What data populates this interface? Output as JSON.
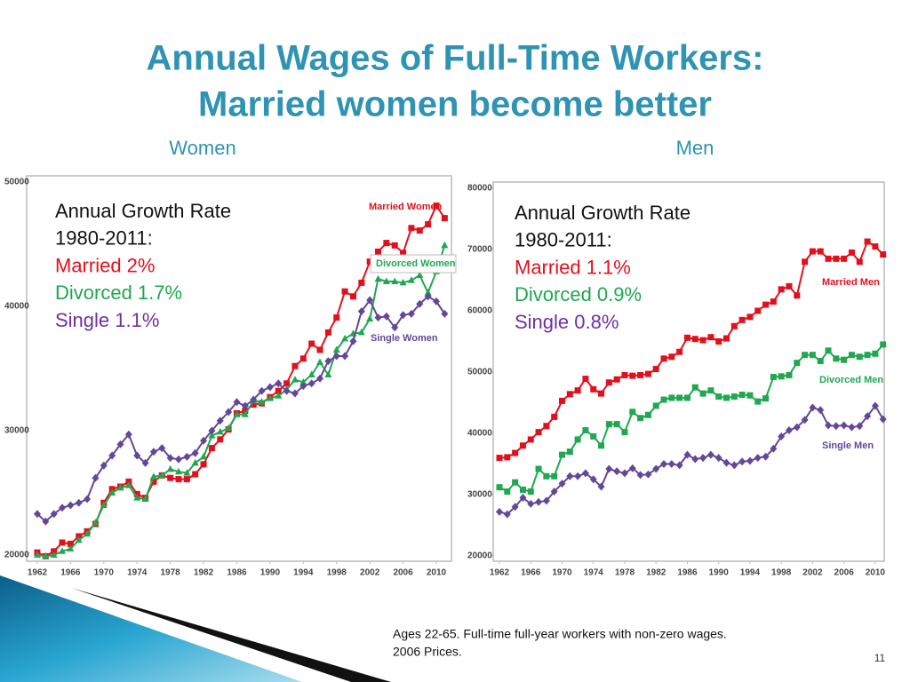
{
  "title": [
    "Annual Wages of Full-Time Workers:",
    "Married women become better"
  ],
  "chart_data": [
    {
      "type": "line",
      "title": "Women",
      "x": [
        1962,
        1963,
        1964,
        1965,
        1966,
        1967,
        1968,
        1969,
        1970,
        1971,
        1972,
        1973,
        1974,
        1975,
        1976,
        1977,
        1978,
        1979,
        1980,
        1981,
        1982,
        1983,
        1984,
        1985,
        1986,
        1987,
        1988,
        1989,
        1990,
        1991,
        1992,
        1993,
        1994,
        1995,
        1996,
        1997,
        1998,
        1999,
        2000,
        2001,
        2002,
        2003,
        2004,
        2005,
        2006,
        2007,
        2008,
        2009,
        2010,
        2011
      ],
      "xlim": [
        1961,
        2012
      ],
      "xticks": [
        1962,
        1966,
        1970,
        1974,
        1978,
        1982,
        1986,
        1990,
        1994,
        1998,
        2002,
        2006,
        2010
      ],
      "ylim": [
        20000,
        50000
      ],
      "yticks": [
        20000,
        30000,
        40000,
        50000
      ],
      "series": [
        {
          "name": "Married Women",
          "color": "#e3101c",
          "marker": "square",
          "values": [
            20200,
            19900,
            20300,
            21000,
            20900,
            21500,
            21900,
            22500,
            24200,
            25300,
            25500,
            25900,
            24900,
            24600,
            25900,
            26400,
            26200,
            26100,
            26100,
            26500,
            27300,
            28600,
            29300,
            30100,
            31400,
            31600,
            32100,
            32200,
            32700,
            33200,
            33800,
            35200,
            35800,
            37000,
            36500,
            37900,
            39100,
            41200,
            40800,
            41900,
            43600,
            44400,
            45100,
            44900,
            44300,
            46300,
            46100,
            46600,
            48100,
            47100
          ]
        },
        {
          "name": "Divorced Women",
          "color": "#1fa850",
          "marker": "triangle",
          "boxed": true,
          "values": [
            20000,
            19900,
            20000,
            20300,
            20500,
            21200,
            21700,
            22600,
            24000,
            25000,
            25400,
            25600,
            24600,
            24500,
            26300,
            26400,
            26900,
            26700,
            26600,
            27400,
            27900,
            29600,
            29900,
            30200,
            31300,
            31300,
            32400,
            32300,
            32600,
            32800,
            33300,
            34100,
            33900,
            34500,
            35500,
            34500,
            36500,
            37400,
            37800,
            37900,
            39000,
            42200,
            42000,
            42000,
            41900,
            42100,
            42500,
            41100,
            42800,
            44900
          ]
        },
        {
          "name": "Single Women",
          "color": "#64479a",
          "marker": "diamond",
          "values": [
            23300,
            22700,
            23300,
            23800,
            24000,
            24200,
            24500,
            26200,
            27200,
            28000,
            28900,
            29700,
            28000,
            27400,
            28300,
            28600,
            27800,
            27700,
            27900,
            28200,
            29200,
            30000,
            30800,
            31500,
            32300,
            32000,
            32500,
            33200,
            33500,
            33800,
            33200,
            33000,
            33600,
            33800,
            34200,
            35600,
            36000,
            36000,
            37200,
            39600,
            40500,
            39100,
            39200,
            38300,
            39300,
            39400,
            40200,
            40800,
            40400,
            39400
          ]
        }
      ],
      "annotations": [
        {
          "text": "Annual Growth Rate",
          "color": "#111111"
        },
        {
          "text": "1980-2011:",
          "color": "#111111"
        },
        {
          "text": "Married 2%",
          "color": "#e3101c"
        },
        {
          "text": "Divorced 1.7%",
          "color": "#1fa850"
        },
        {
          "text": "Single 1.1%",
          "color": "#7030a0"
        }
      ]
    },
    {
      "type": "line",
      "title": "Men",
      "x": [
        1962,
        1963,
        1964,
        1965,
        1966,
        1967,
        1968,
        1969,
        1970,
        1971,
        1972,
        1973,
        1974,
        1975,
        1976,
        1977,
        1978,
        1979,
        1980,
        1981,
        1982,
        1983,
        1984,
        1985,
        1986,
        1987,
        1988,
        1989,
        1990,
        1991,
        1992,
        1993,
        1994,
        1995,
        1996,
        1997,
        1998,
        1999,
        2000,
        2001,
        2002,
        2003,
        2004,
        2005,
        2006,
        2007,
        2008,
        2009,
        2010,
        2011
      ],
      "xlim": [
        1961,
        2012
      ],
      "xticks": [
        1962,
        1966,
        1970,
        1974,
        1978,
        1982,
        1986,
        1990,
        1994,
        1998,
        2002,
        2006,
        2010
      ],
      "ylim": [
        20000,
        80000
      ],
      "yticks": [
        20000,
        30000,
        40000,
        50000,
        60000,
        70000,
        80000
      ],
      "series": [
        {
          "name": "Married Men",
          "color": "#e3101c",
          "marker": "square",
          "values": [
            36000,
            36100,
            36800,
            38000,
            39000,
            40200,
            41200,
            42700,
            45300,
            46400,
            47000,
            48900,
            47200,
            46500,
            48300,
            48800,
            49500,
            49400,
            49500,
            49700,
            50500,
            52200,
            52500,
            53300,
            55600,
            55400,
            55200,
            55700,
            55000,
            55500,
            57500,
            58500,
            59000,
            60000,
            61000,
            61500,
            63500,
            64000,
            62500,
            68000,
            69700,
            69700,
            68500,
            68500,
            68500,
            69500,
            68000,
            71300,
            70500,
            69200
          ]
        },
        {
          "name": "Divorced Men",
          "color": "#1fa850",
          "marker": "square",
          "values": [
            31200,
            30500,
            32000,
            30800,
            30500,
            34200,
            33000,
            33000,
            36500,
            37000,
            39000,
            40500,
            39500,
            38000,
            41500,
            41500,
            40200,
            43500,
            42500,
            43000,
            44500,
            45500,
            45800,
            45800,
            45800,
            47500,
            46500,
            47000,
            46000,
            45800,
            46000,
            46300,
            46200,
            45200,
            45700,
            49200,
            49300,
            49500,
            51500,
            52800,
            52800,
            51800,
            53500,
            52200,
            52000,
            52800,
            52500,
            52800,
            53000,
            54500
          ]
        },
        {
          "name": "Single Men",
          "color": "#64479a",
          "marker": "diamond",
          "values": [
            27200,
            26800,
            28000,
            29500,
            28500,
            28800,
            29000,
            30500,
            31800,
            33000,
            33000,
            33500,
            32500,
            31300,
            34200,
            33800,
            33500,
            34300,
            33200,
            33300,
            34200,
            35000,
            35000,
            34800,
            36500,
            35800,
            36000,
            36500,
            36000,
            35200,
            34800,
            35400,
            35500,
            36000,
            36200,
            37500,
            39500,
            40500,
            41000,
            42200,
            44200,
            43800,
            41300,
            41200,
            41300,
            41000,
            41200,
            42800,
            44500,
            42300
          ]
        }
      ],
      "annotations": [
        {
          "text": "Annual Growth Rate",
          "color": "#111111"
        },
        {
          "text": "1980-2011:",
          "color": "#111111"
        },
        {
          "text": "Married 1.1%",
          "color": "#e3101c"
        },
        {
          "text": "Divorced 0.9%",
          "color": "#1fa850"
        },
        {
          "text": "Single 0.8%",
          "color": "#7030a0"
        }
      ]
    }
  ],
  "footnote": [
    "Ages 22-65. Full-time full-year workers with non-zero wages.",
    "2006 Prices."
  ],
  "page_number": "11"
}
